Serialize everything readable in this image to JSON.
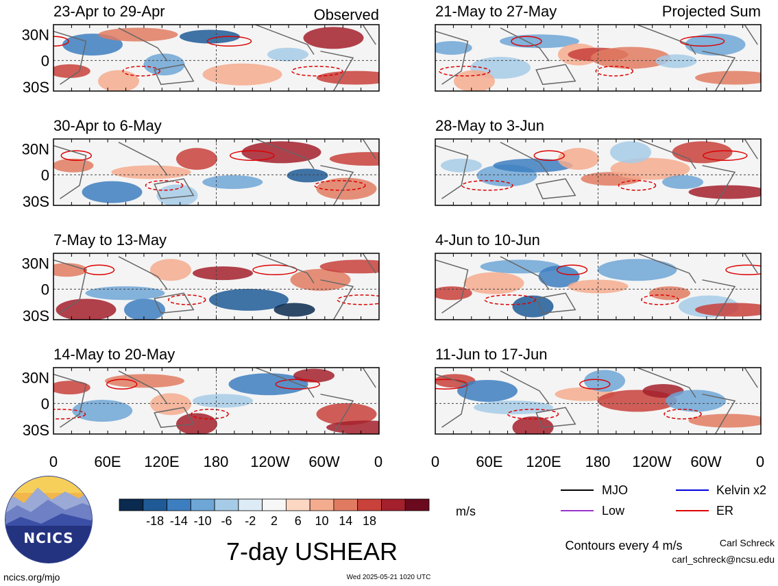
{
  "observed_label": "Observed",
  "projected_label": "Projected Sum",
  "panels": [
    {
      "period": "23-Apr to 29-Apr",
      "kind": "observed"
    },
    {
      "period": "30-Apr to 6-May",
      "kind": "observed"
    },
    {
      "period": "7-May to 13-May",
      "kind": "observed"
    },
    {
      "period": "14-May to 20-May",
      "kind": "observed"
    },
    {
      "period": "21-May to 27-May",
      "kind": "projected"
    },
    {
      "period": "28-May to 3-Jun",
      "kind": "projected"
    },
    {
      "period": "4-Jun to 10-Jun",
      "kind": "projected"
    },
    {
      "period": "11-Jun to 17-Jun",
      "kind": "projected"
    }
  ],
  "lat_labels": [
    "30N",
    "0",
    "30S"
  ],
  "lon_labels": [
    "0",
    "60E",
    "120E",
    "180",
    "120W",
    "60W",
    "0"
  ],
  "colorbar": {
    "ticks": [
      "-18",
      "-14",
      "-10",
      "-6",
      "-2",
      "2",
      "6",
      "10",
      "14",
      "18"
    ],
    "colors": [
      "#0a2a4f",
      "#1f5a96",
      "#3d7ec0",
      "#6ea6d6",
      "#a6cbe7",
      "#dcebf5",
      "#f7f7f7",
      "#fbd7c4",
      "#f4ac8e",
      "#e07b62",
      "#c8413b",
      "#a3202c",
      "#6b0a1e"
    ],
    "units": "m/s"
  },
  "legend": [
    {
      "label": "MJO",
      "color": "#000000"
    },
    {
      "label": "Kelvin x2",
      "color": "#0000dd"
    },
    {
      "label": "Low",
      "color": "#9933cc"
    },
    {
      "label": "ER",
      "color": "#dd0000"
    }
  ],
  "main_title": "7-day USHEAR",
  "contours_note": "Contours every 4 m/s",
  "author": "Carl Schreck",
  "email": "carl_schreck@ncsu.edu",
  "website": "ncics.org/mjo",
  "timestamp": "Wed 2025-05-21 1020 UTC",
  "logo_text": "NCICS"
}
